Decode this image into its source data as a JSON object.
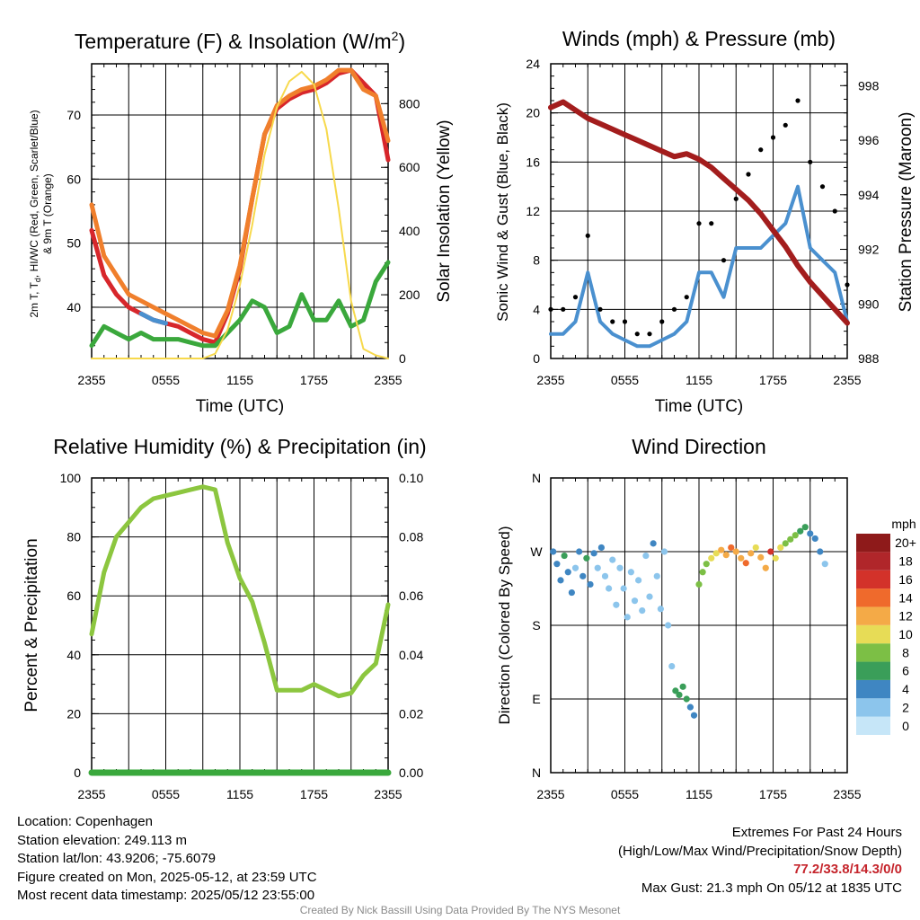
{
  "panels": {
    "temperature": {
      "title": "Temperature (F) & Insolation (W/m",
      "title_sup": "2",
      "title_end": ")",
      "ylabel_left_1": "2m T, T",
      "ylabel_left_1_sub": "d",
      "ylabel_left_1_end": ", HI/WC (Red, Green, Scarlet/Blue)",
      "ylabel_left_2": "& 9m T (Orange)",
      "ylabel_right": "Solar Insolation (Yellow)",
      "xlabel": "Time (UTC)"
    },
    "winds": {
      "title": "Winds (mph) & Pressure (mb)",
      "ylabel_left": "Sonic Wind & Gust (Blue, Black)",
      "ylabel_right": "Station Pressure (Maroon)",
      "xlabel": "Time (UTC)"
    },
    "humidity": {
      "title": "Relative Humidity (%) & Precipitation (in)",
      "ylabel_left": "Percent & Precipitation"
    },
    "direction": {
      "title": "Wind Direction",
      "ylabel_left": "Direction (Colored By Speed)",
      "colorbar_title": "mph"
    }
  },
  "footer": {
    "location": "Location: Copenhagen",
    "elevation": "Station elevation: 249.113 m",
    "latlon": "Station lat/lon: 43.9206; -75.6079",
    "created": "Figure created on Mon, 2025-05-12, at 23:59 UTC",
    "recent": "Most recent data timestamp: 2025/05/12 23:55:00",
    "extremes_title": "Extremes For Past 24 Hours",
    "extremes_legend": "(High/Low/Max Wind/Precipitation/Snow Depth)",
    "extremes_values": "77.2/33.8/14.3/0/0",
    "max_gust": "Max Gust: 21.3 mph On 05/12 at 1835 UTC",
    "credit": "Created By Nick Bassill Using Data Provided By The NYS Mesonet"
  },
  "colors": {
    "temp": "#d7262b",
    "temp_9m": "#f07f2c",
    "dewpoint": "#3aa83c",
    "heat_wind_chill": "#4a90cf",
    "insolation": "#f7d94c",
    "wind": "#4a90cf",
    "gust": "#000000",
    "pressure": "#a31d1d",
    "rh": "#8cc63f",
    "precip": "#3aa83c"
  },
  "chart_data": [
    {
      "type": "line",
      "title": "Temperature (F) & Insolation (W/m2)",
      "xlabel": "Time (UTC)",
      "ylabel": "2m T, Td, HI/WC (Red, Green, Scarlet/Blue) & 9m T (Orange)",
      "y2label": "Solar Insolation (Yellow)",
      "xticks": [
        "2355",
        "0555",
        "1155",
        "1755",
        "2355"
      ],
      "x": [
        0,
        1,
        2,
        3,
        4,
        5,
        6,
        7,
        8,
        9,
        10,
        11,
        12,
        13,
        14,
        15,
        16,
        17,
        18,
        19,
        20,
        21,
        22,
        23,
        24
      ],
      "ylim": [
        32,
        78
      ],
      "yticks": [
        40,
        50,
        60,
        70
      ],
      "y2lim": [
        0,
        925
      ],
      "y2ticks": [
        0,
        200,
        400,
        600,
        800
      ],
      "grid": true,
      "series": [
        {
          "name": "2m T",
          "axis": "left",
          "color": "#d7262b",
          "values": [
            52,
            45,
            42,
            40,
            39,
            38,
            37.5,
            37,
            36,
            35,
            34.5,
            39,
            46,
            57,
            67,
            71,
            72.5,
            73.5,
            74,
            75,
            76.5,
            77,
            75,
            73,
            63
          ]
        },
        {
          "name": "9m T",
          "axis": "left",
          "color": "#f07f2c",
          "values": [
            56,
            48,
            45,
            42,
            41,
            40,
            39,
            38,
            37,
            36,
            35.5,
            39.5,
            46.5,
            57,
            67,
            71.5,
            73,
            74,
            74.5,
            75.5,
            77,
            77,
            74,
            73,
            66
          ]
        },
        {
          "name": "Td",
          "axis": "left",
          "color": "#3aa83c",
          "values": [
            34,
            37,
            36,
            35,
            36,
            35,
            35,
            35,
            34.5,
            34,
            34,
            36,
            38,
            41,
            40,
            36,
            37,
            42,
            38,
            38,
            41,
            37,
            38,
            44,
            47
          ]
        },
        {
          "name": "HI/WC",
          "axis": "left",
          "color": "#4a90cf",
          "values": [
            null,
            null,
            null,
            null,
            39,
            38,
            37.5,
            null,
            null,
            null,
            null,
            null,
            null,
            57,
            null,
            null,
            null,
            null,
            null,
            null,
            null,
            null,
            null,
            null,
            null
          ]
        },
        {
          "name": "Insolation",
          "axis": "right",
          "color": "#f7d94c",
          "values": [
            0,
            0,
            0,
            0,
            0,
            0,
            0,
            0,
            0,
            0,
            15,
            90,
            230,
            420,
            640,
            790,
            870,
            900,
            860,
            720,
            470,
            180,
            30,
            10,
            0
          ]
        }
      ]
    },
    {
      "type": "line",
      "title": "Winds (mph) & Pressure (mb)",
      "xlabel": "Time (UTC)",
      "ylabel": "Sonic Wind & Gust (Blue, Black)",
      "y2label": "Station Pressure (Maroon)",
      "xticks": [
        "2355",
        "0555",
        "1155",
        "1755",
        "2355"
      ],
      "x": [
        0,
        1,
        2,
        3,
        4,
        5,
        6,
        7,
        8,
        9,
        10,
        11,
        12,
        13,
        14,
        15,
        16,
        17,
        18,
        19,
        20,
        21,
        22,
        23,
        24
      ],
      "ylim": [
        0,
        24
      ],
      "yticks": [
        0,
        4,
        8,
        12,
        16,
        20,
        24
      ],
      "y2lim": [
        988,
        998.8
      ],
      "y2ticks": [
        988,
        990,
        992,
        994,
        996,
        998
      ],
      "grid": true,
      "series": [
        {
          "name": "Sonic Wind",
          "axis": "left",
          "type": "line",
          "color": "#4a90cf",
          "values": [
            2,
            2,
            3,
            7,
            3,
            2,
            1.5,
            1,
            1,
            1.5,
            2,
            3,
            7,
            7,
            5,
            9,
            9,
            9,
            10,
            11,
            14,
            9,
            8,
            7,
            3
          ]
        },
        {
          "name": "Gust",
          "axis": "left",
          "type": "scatter",
          "color": "#000000",
          "values": [
            4,
            4,
            5,
            10,
            4,
            3,
            3,
            2,
            2,
            3,
            4,
            5,
            11,
            11,
            8,
            13,
            15,
            17,
            18,
            19,
            21,
            16,
            14,
            12,
            6
          ]
        },
        {
          "name": "Station Pressure",
          "axis": "right",
          "type": "line",
          "color": "#a31d1d",
          "values": [
            997.2,
            997.4,
            997.1,
            996.8,
            996.6,
            996.4,
            996.2,
            996,
            995.8,
            995.6,
            995.4,
            995.5,
            995.3,
            995,
            994.6,
            994.2,
            993.8,
            993.3,
            992.7,
            992.1,
            991.4,
            990.8,
            990.3,
            989.8,
            989.3
          ]
        }
      ]
    },
    {
      "type": "line",
      "title": "Relative Humidity (%) & Precipitation (in)",
      "xlabel": "",
      "ylabel": "Percent & Precipitation",
      "xticks": [
        "2355",
        "0555",
        "1155",
        "1755",
        "2355"
      ],
      "x": [
        0,
        1,
        2,
        3,
        4,
        5,
        6,
        7,
        8,
        9,
        10,
        11,
        12,
        13,
        14,
        15,
        16,
        17,
        18,
        19,
        20,
        21,
        22,
        23,
        24
      ],
      "ylim": [
        0,
        100
      ],
      "yticks": [
        0,
        20,
        40,
        60,
        80,
        100
      ],
      "y2lim": [
        0,
        0.1
      ],
      "y2ticks": [
        "0.00",
        "0.02",
        "0.04",
        "0.06",
        "0.08",
        "0.10"
      ],
      "grid": true,
      "series": [
        {
          "name": "Relative Humidity",
          "axis": "left",
          "color": "#8cc63f",
          "values": [
            47,
            68,
            80,
            85,
            90,
            93,
            94,
            95,
            96,
            97,
            96,
            78,
            66,
            58,
            44,
            28,
            28,
            28,
            30,
            28,
            26,
            27,
            33,
            37,
            57
          ]
        },
        {
          "name": "Precipitation",
          "axis": "right",
          "color": "#3aa83c",
          "values": [
            0,
            0,
            0,
            0,
            0,
            0,
            0,
            0,
            0,
            0,
            0,
            0,
            0,
            0,
            0,
            0,
            0,
            0,
            0,
            0,
            0,
            0,
            0,
            0,
            0
          ]
        }
      ]
    },
    {
      "type": "scatter",
      "title": "Wind Direction",
      "xlabel": "",
      "ylabel": "Direction (Colored By Speed)",
      "xticks": [
        "2355",
        "0555",
        "1155",
        "1755",
        "2355"
      ],
      "yticks": [
        "N",
        "E",
        "S",
        "W",
        "N"
      ],
      "ylim": [
        0,
        360
      ],
      "colorbar": {
        "title": "mph",
        "labels": [
          "0",
          "2",
          "4",
          "6",
          "8",
          "10",
          "12",
          "14",
          "16",
          "18",
          "20+"
        ],
        "colors": [
          "#c6e6f8",
          "#8cc5ec",
          "#3f86c2",
          "#3a9e59",
          "#7cbf45",
          "#e7dc56",
          "#f4aa47",
          "#ef6a2c",
          "#d3322a",
          "#b0262a",
          "#8e1a1a"
        ]
      },
      "points": [
        {
          "t": 0.2,
          "dir": 270,
          "mph": 3
        },
        {
          "t": 0.5,
          "dir": 255,
          "mph": 4
        },
        {
          "t": 0.8,
          "dir": 235,
          "mph": 3
        },
        {
          "t": 1.1,
          "dir": 265,
          "mph": 5
        },
        {
          "t": 1.4,
          "dir": 245,
          "mph": 4
        },
        {
          "t": 1.7,
          "dir": 220,
          "mph": 3
        },
        {
          "t": 2.0,
          "dir": 250,
          "mph": 2
        },
        {
          "t": 2.3,
          "dir": 270,
          "mph": 3
        },
        {
          "t": 2.6,
          "dir": 240,
          "mph": 4
        },
        {
          "t": 2.9,
          "dir": 262,
          "mph": 5
        },
        {
          "t": 3.2,
          "dir": 230,
          "mph": 3
        },
        {
          "t": 3.5,
          "dir": 268,
          "mph": 4
        },
        {
          "t": 3.8,
          "dir": 250,
          "mph": 2
        },
        {
          "t": 4.1,
          "dir": 275,
          "mph": 3
        },
        {
          "t": 4.4,
          "dir": 240,
          "mph": 2
        },
        {
          "t": 4.7,
          "dir": 225,
          "mph": 1
        },
        {
          "t": 5.0,
          "dir": 260,
          "mph": 2
        },
        {
          "t": 5.3,
          "dir": 205,
          "mph": 1
        },
        {
          "t": 5.6,
          "dir": 250,
          "mph": 2
        },
        {
          "t": 5.9,
          "dir": 225,
          "mph": 1
        },
        {
          "t": 6.2,
          "dir": 190,
          "mph": 2
        },
        {
          "t": 6.5,
          "dir": 245,
          "mph": 1
        },
        {
          "t": 6.8,
          "dir": 210,
          "mph": 2
        },
        {
          "t": 7.1,
          "dir": 235,
          "mph": 1
        },
        {
          "t": 7.4,
          "dir": 198,
          "mph": 2
        },
        {
          "t": 7.7,
          "dir": 265,
          "mph": 1
        },
        {
          "t": 8.0,
          "dir": 215,
          "mph": 2
        },
        {
          "t": 8.3,
          "dir": 280,
          "mph": 3
        },
        {
          "t": 8.6,
          "dir": 240,
          "mph": 2
        },
        {
          "t": 8.9,
          "dir": 200,
          "mph": 1
        },
        {
          "t": 9.2,
          "dir": 270,
          "mph": 2
        },
        {
          "t": 9.5,
          "dir": 180,
          "mph": 1
        },
        {
          "t": 9.8,
          "dir": 130,
          "mph": 2
        },
        {
          "t": 10.1,
          "dir": 100,
          "mph": 5
        },
        {
          "t": 10.4,
          "dir": 95,
          "mph": 6
        },
        {
          "t": 10.7,
          "dir": 105,
          "mph": 5
        },
        {
          "t": 11.0,
          "dir": 90,
          "mph": 6
        },
        {
          "t": 11.3,
          "dir": 80,
          "mph": 4
        },
        {
          "t": 11.6,
          "dir": 70,
          "mph": 4
        },
        {
          "t": 12.0,
          "dir": 230,
          "mph": 7
        },
        {
          "t": 12.3,
          "dir": 245,
          "mph": 8
        },
        {
          "t": 12.6,
          "dir": 255,
          "mph": 8
        },
        {
          "t": 13.0,
          "dir": 262,
          "mph": 9
        },
        {
          "t": 13.4,
          "dir": 268,
          "mph": 10
        },
        {
          "t": 13.8,
          "dir": 272,
          "mph": 11
        },
        {
          "t": 14.2,
          "dir": 266,
          "mph": 12
        },
        {
          "t": 14.6,
          "dir": 275,
          "mph": 13
        },
        {
          "t": 15.0,
          "dir": 270,
          "mph": 12
        },
        {
          "t": 15.4,
          "dir": 262,
          "mph": 11
        },
        {
          "t": 15.8,
          "dir": 256,
          "mph": 14
        },
        {
          "t": 16.2,
          "dir": 268,
          "mph": 12
        },
        {
          "t": 16.6,
          "dir": 275,
          "mph": 10
        },
        {
          "t": 17.0,
          "dir": 263,
          "mph": 12
        },
        {
          "t": 17.4,
          "dir": 250,
          "mph": 11
        },
        {
          "t": 17.8,
          "dir": 270,
          "mph": 15
        },
        {
          "t": 18.2,
          "dir": 262,
          "mph": 10
        },
        {
          "t": 18.6,
          "dir": 275,
          "mph": 9
        },
        {
          "t": 19.0,
          "dir": 280,
          "mph": 8
        },
        {
          "t": 19.4,
          "dir": 285,
          "mph": 8
        },
        {
          "t": 19.8,
          "dir": 290,
          "mph": 7
        },
        {
          "t": 20.2,
          "dir": 295,
          "mph": 6
        },
        {
          "t": 20.6,
          "dir": 300,
          "mph": 5
        },
        {
          "t": 21.0,
          "dir": 292,
          "mph": 4
        },
        {
          "t": 21.4,
          "dir": 286,
          "mph": 4
        },
        {
          "t": 21.8,
          "dir": 270,
          "mph": 3
        },
        {
          "t": 22.2,
          "dir": 255,
          "mph": 2
        }
      ]
    }
  ]
}
